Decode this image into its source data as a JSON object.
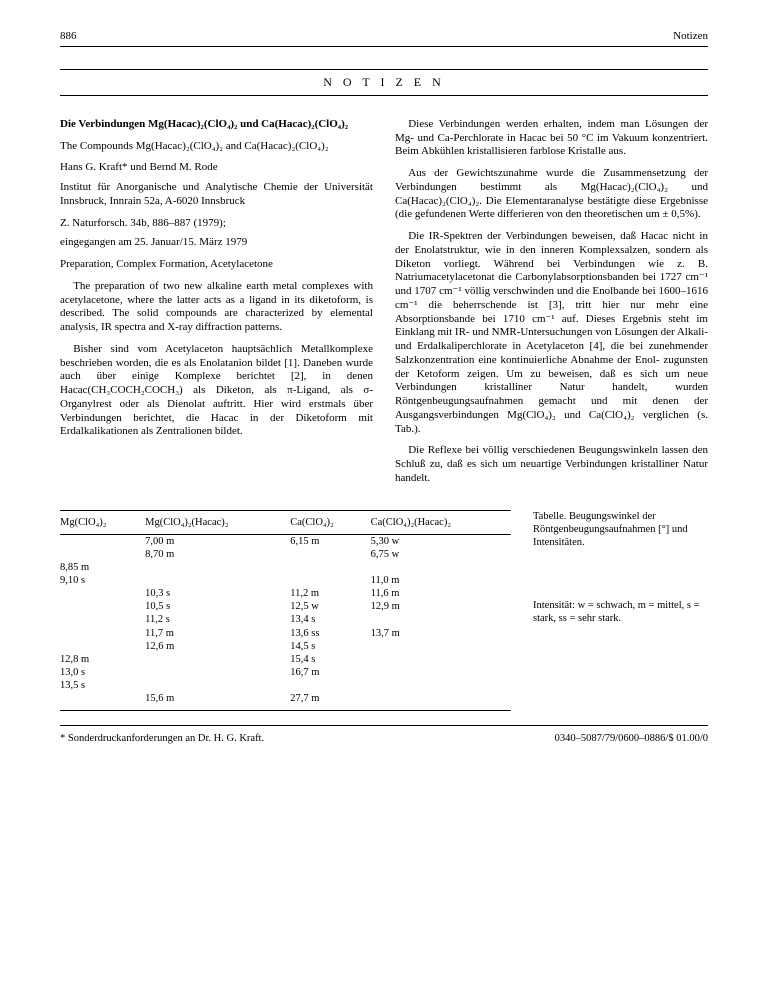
{
  "header": {
    "page": "886",
    "running": "Notizen"
  },
  "section_title": "N O T I Z E N",
  "left": {
    "title": "Die Verbindungen Mg(Hacac)₂(ClO₄)₂ und Ca(Hacac)₂(ClO₄)₂",
    "subtitle": "The Compounds Mg(Hacac)₂(ClO₄)₂ and Ca(Hacac)₂(ClO₄)₂",
    "authors": "Hans G. Kraft* und Bernd M. Rode",
    "affil": "Institut für Anorganische und Analytische Chemie der Universität Innsbruck, Innrain 52a, A-6020 Innsbruck",
    "journal": "Z. Naturforsch. 34b, 886–887 (1979);",
    "received": "eingegangen am 25. Januar/15. März 1979",
    "keywords": "Preparation, Complex Formation, Acetylacetone",
    "abstract": "The preparation of two new alkaline earth metal complexes with acetylacetone, where the latter acts as a ligand in its diketoform, is described. The solid compounds are characterized by elemental analysis, IR spectra and X-ray diffraction patterns.",
    "para1": "Bisher sind vom Acetylaceton hauptsächlich Metallkomplexe beschrieben worden, die es als Enolatanion bildet [1]. Daneben wurde auch über einige Komplexe berichtet [2], in denen Hacac(CH₃COCH₂COCH₃) als Diketon, als π-Ligand, als σ-Organylrest oder als Dienolat auftritt. Hier wird erstmals über Verbindungen berichtet, die Hacac in der Diketoform mit Erdalkalikationen als Zentralionen bildet."
  },
  "right": {
    "para1": "Diese Verbindungen werden erhalten, indem man Lösungen der Mg- und Ca-Perchlorate in Hacac bei 50 °C im Vakuum konzentriert. Beim Abkühlen kristallisieren farblose Kristalle aus.",
    "para2": "Aus der Gewichtszunahme wurde die Zusammensetzung der Verbindungen bestimmt als Mg(Hacac)₂(ClO₄)₂ und Ca(Hacac)₂(ClO₄)₂. Die Elementaranalyse bestätigte diese Ergebnisse (die gefundenen Werte differieren von den theoretischen um ± 0,5%).",
    "para3": "Die IR-Spektren der Verbindungen beweisen, daß Hacac nicht in der Enolatstruktur, wie in den inneren Komplexsalzen, sondern als Diketon vorliegt. Während bei Verbindungen wie z. B. Natriumacetylacetonat die Carbonylabsorptionsbanden bei 1727 cm⁻¹ und 1707 cm⁻¹ völlig verschwinden und die Enolbande bei 1600–1616 cm⁻¹ die beherrschende ist [3], tritt hier nur mehr eine Absorptionsbande bei 1710 cm⁻¹ auf. Dieses Ergebnis steht im Einklang mit IR- und NMR-Untersuchungen von Lösungen der Alkali- und Erdalkaliperchlorate in Acetylaceton [4], die bei zunehmender Salzkonzentration eine kontinuierliche Abnahme der Enol- zugunsten der Ketoform zeigen. Um zu beweisen, daß es sich um neue Verbindungen kristalliner Natur handelt, wurden Röntgenbeugungsaufnahmen gemacht und mit denen der Ausgangsverbindungen Mg(ClO₄)₂ und Ca(ClO₄)₂ verglichen (s. Tab.).",
    "para4": "Die Reflexe bei völlig verschiedenen Beugungswinkeln lassen den Schluß zu, daß es sich um neuartige Verbindungen kristalliner Natur handelt."
  },
  "table": {
    "caption": "Tabelle. Beugungswinkel der Röntgenbeugungsaufnahmen [°] und Intensitäten.",
    "note": "Intensität: w = schwach, m = mittel, s = stark, ss = sehr stark.",
    "columns": [
      "Mg(ClO₄)₂",
      "Mg(ClO₄)₂(Hacac)₂",
      "Ca(ClO₄)₂",
      "Ca(ClO₄)₂(Hacac)₂"
    ],
    "rows": [
      [
        "",
        "7,00 m",
        "6,15 m",
        "5,30 w"
      ],
      [
        "",
        "8,70 m",
        "",
        "6,75 w"
      ],
      [
        "8,85 m",
        "",
        "",
        ""
      ],
      [
        "9,10 s",
        "",
        "",
        "11,0 m"
      ],
      [
        "",
        "10,3 s",
        "11,2 m",
        "11,6 m"
      ],
      [
        "",
        "10,5 s",
        "12,5 w",
        "12,9 m"
      ],
      [
        "",
        "11,2 s",
        "13,4 s",
        ""
      ],
      [
        "",
        "11,7 m",
        "13,6 ss",
        "13,7 m"
      ],
      [
        "",
        "12,6 m",
        "14,5 s",
        ""
      ],
      [
        "12,8 m",
        "",
        "15,4 s",
        ""
      ],
      [
        "13,0 s",
        "",
        "16,7 m",
        ""
      ],
      [
        "13,5 s",
        "",
        "",
        ""
      ],
      [
        "",
        "15,6 m",
        "27,7 m",
        ""
      ]
    ]
  },
  "footer": {
    "left": "* Sonderdruckanforderungen an Dr. H. G. Kraft.",
    "right": "0340–5087/79/0600–0886/$ 01.00/0"
  }
}
